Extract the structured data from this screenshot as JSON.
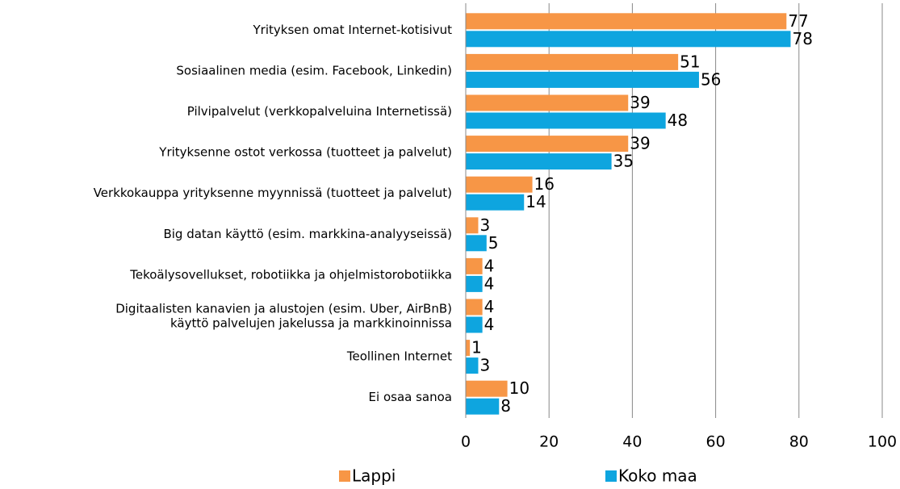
{
  "chart_data": {
    "type": "bar",
    "orientation": "horizontal",
    "categories": [
      "Yrityksen omat Internet-kotisivut",
      "Sosiaalinen media (esim. Facebook, Linkedin)",
      "Pilvipalvelut  (verkkopalveluina Internetissä)",
      "Yrityksenne ostot verkossa (tuotteet ja palvelut)",
      "Verkkokauppa yrityksenne myynnissä (tuotteet ja palvelut)",
      "Big datan käyttö (esim. markkina-analyyseissä)",
      "Tekoälysovellukset, robotiikka ja ohjelmistorobotiikka",
      "Digitaalisten kanavien ja alustojen (esim. Uber, AirBnB)\nkäyttö palvelujen jakelussa ja markkinoinnissa",
      "Teollinen Internet",
      "Ei osaa sanoa"
    ],
    "series": [
      {
        "name": "Lappi",
        "color": "#f79646",
        "values": [
          77,
          51,
          39,
          39,
          16,
          3,
          4,
          4,
          1,
          10
        ]
      },
      {
        "name": "Koko maa",
        "color": "#0ea5df",
        "values": [
          78,
          56,
          48,
          35,
          14,
          5,
          4,
          4,
          3,
          8
        ]
      }
    ],
    "xlim": [
      0,
      100
    ],
    "xticks": [
      0,
      20,
      40,
      60,
      80,
      100
    ],
    "grid": true,
    "legend": "bottom"
  }
}
